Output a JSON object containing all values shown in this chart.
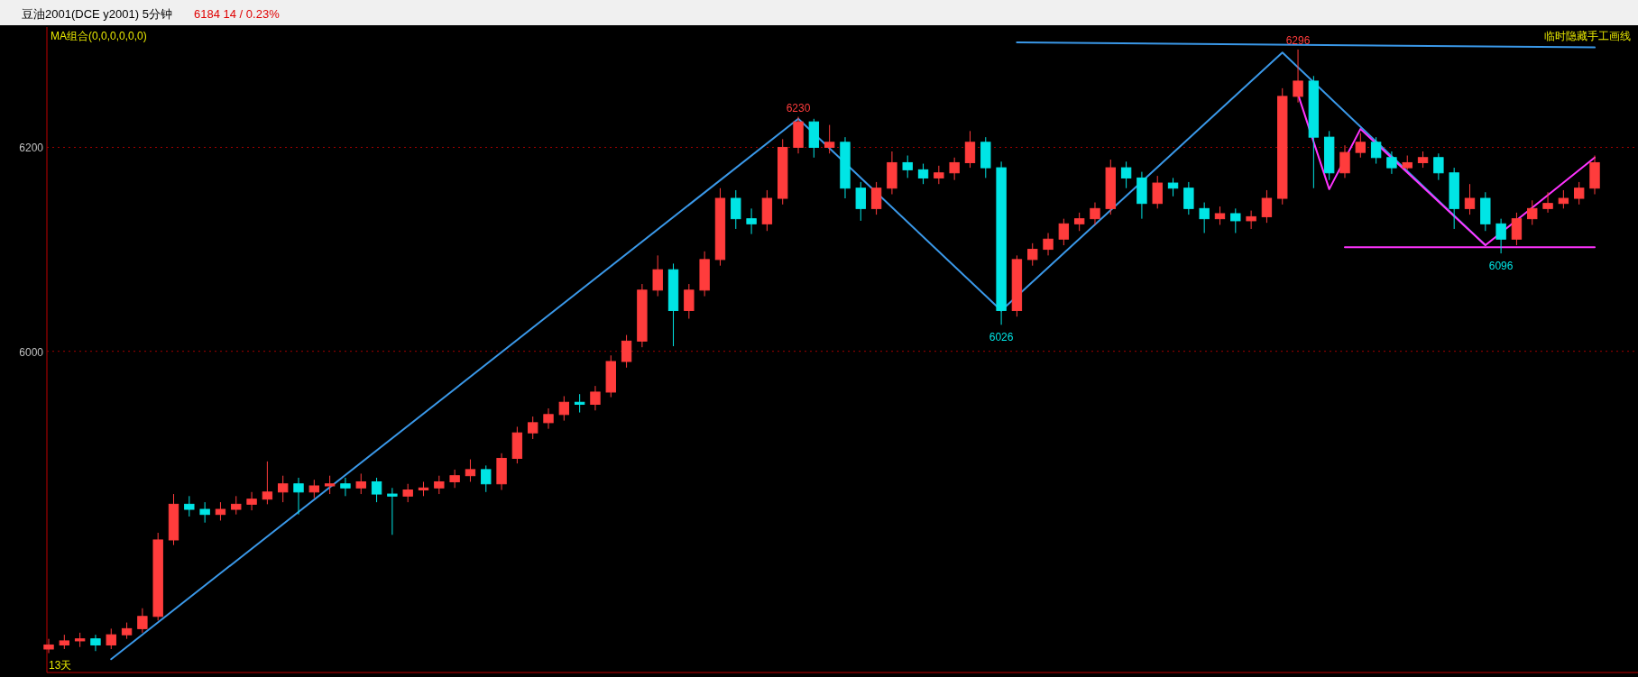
{
  "chart_data": {
    "type": "candlestick",
    "title": "豆油2001(DCE y2001)  5分钟",
    "subtitle": "6184   14 / 0.23%",
    "categories": [
      null,
      null,
      null,
      null,
      null,
      null,
      null,
      null,
      null,
      null,
      null,
      null,
      null,
      null,
      null,
      null,
      null,
      null,
      null,
      null,
      null,
      null,
      null,
      null,
      null,
      null,
      null,
      null,
      null,
      null,
      null,
      null,
      null,
      null,
      null,
      null,
      null,
      null,
      null,
      null,
      null,
      null,
      null,
      null,
      null,
      null,
      null,
      null,
      null,
      null,
      null,
      null,
      null,
      null,
      null,
      null,
      null,
      null,
      null,
      null,
      null,
      null,
      null,
      null,
      null,
      null,
      null,
      null,
      null,
      null,
      null,
      null,
      null,
      null,
      null,
      null,
      null,
      null,
      null,
      null,
      null,
      null,
      null,
      null,
      null,
      null,
      null,
      null,
      null,
      null,
      null,
      null,
      null,
      null,
      null,
      null,
      null,
      null,
      null,
      null
    ],
    "ohlc": [
      [
        5708,
        5718,
        5704,
        5712
      ],
      [
        5712,
        5722,
        5708,
        5716
      ],
      [
        5716,
        5724,
        5710,
        5718
      ],
      [
        5718,
        5722,
        5706,
        5712
      ],
      [
        5712,
        5728,
        5708,
        5722
      ],
      [
        5722,
        5734,
        5718,
        5728
      ],
      [
        5728,
        5748,
        5724,
        5740
      ],
      [
        5740,
        5822,
        5736,
        5815
      ],
      [
        5815,
        5860,
        5810,
        5850
      ],
      [
        5850,
        5858,
        5838,
        5845
      ],
      [
        5845,
        5852,
        5832,
        5840
      ],
      [
        5840,
        5852,
        5834,
        5845
      ],
      [
        5845,
        5858,
        5840,
        5850
      ],
      [
        5850,
        5862,
        5844,
        5855
      ],
      [
        5855,
        5892,
        5850,
        5862
      ],
      [
        5862,
        5878,
        5852,
        5870
      ],
      [
        5870,
        5876,
        5840,
        5862
      ],
      [
        5862,
        5874,
        5856,
        5868
      ],
      [
        5868,
        5878,
        5860,
        5870
      ],
      [
        5870,
        5876,
        5858,
        5866
      ],
      [
        5866,
        5880,
        5860,
        5872
      ],
      [
        5872,
        5876,
        5852,
        5860
      ],
      [
        5860,
        5866,
        5820,
        5858
      ],
      [
        5858,
        5870,
        5852,
        5864
      ],
      [
        5864,
        5872,
        5858,
        5866
      ],
      [
        5866,
        5878,
        5860,
        5872
      ],
      [
        5872,
        5884,
        5866,
        5878
      ],
      [
        5878,
        5894,
        5872,
        5884
      ],
      [
        5884,
        5888,
        5862,
        5870
      ],
      [
        5870,
        5900,
        5864,
        5895
      ],
      [
        5895,
        5926,
        5890,
        5920
      ],
      [
        5920,
        5936,
        5914,
        5930
      ],
      [
        5930,
        5944,
        5924,
        5938
      ],
      [
        5938,
        5956,
        5932,
        5950
      ],
      [
        5950,
        5958,
        5940,
        5948
      ],
      [
        5948,
        5966,
        5942,
        5960
      ],
      [
        5960,
        5996,
        5955,
        5990
      ],
      [
        5990,
        6016,
        5984,
        6010
      ],
      [
        6010,
        6066,
        6004,
        6060
      ],
      [
        6060,
        6094,
        6054,
        6080
      ],
      [
        6080,
        6086,
        6005,
        6040
      ],
      [
        6040,
        6066,
        6032,
        6060
      ],
      [
        6060,
        6098,
        6054,
        6090
      ],
      [
        6090,
        6160,
        6084,
        6150
      ],
      [
        6150,
        6158,
        6120,
        6130
      ],
      [
        6130,
        6140,
        6115,
        6125
      ],
      [
        6125,
        6158,
        6118,
        6150
      ],
      [
        6150,
        6208,
        6144,
        6200
      ],
      [
        6200,
        6230,
        6194,
        6225
      ],
      [
        6225,
        6228,
        6190,
        6200
      ],
      [
        6200,
        6222,
        6194,
        6205
      ],
      [
        6205,
        6210,
        6150,
        6160
      ],
      [
        6160,
        6166,
        6128,
        6140
      ],
      [
        6140,
        6166,
        6134,
        6160
      ],
      [
        6160,
        6196,
        6154,
        6185
      ],
      [
        6185,
        6192,
        6170,
        6178
      ],
      [
        6178,
        6184,
        6164,
        6170
      ],
      [
        6170,
        6182,
        6164,
        6175
      ],
      [
        6175,
        6190,
        6168,
        6185
      ],
      [
        6185,
        6216,
        6180,
        6205
      ],
      [
        6205,
        6210,
        6170,
        6180
      ],
      [
        6180,
        6186,
        6026,
        6040
      ],
      [
        6040,
        6094,
        6034,
        6090
      ],
      [
        6090,
        6106,
        6084,
        6100
      ],
      [
        6100,
        6116,
        6094,
        6110
      ],
      [
        6110,
        6130,
        6104,
        6125
      ],
      [
        6125,
        6136,
        6118,
        6130
      ],
      [
        6130,
        6146,
        6124,
        6140
      ],
      [
        6140,
        6188,
        6134,
        6180
      ],
      [
        6180,
        6186,
        6160,
        6170
      ],
      [
        6170,
        6176,
        6130,
        6145
      ],
      [
        6145,
        6172,
        6140,
        6165
      ],
      [
        6165,
        6170,
        6152,
        6160
      ],
      [
        6160,
        6166,
        6134,
        6140
      ],
      [
        6140,
        6146,
        6116,
        6130
      ],
      [
        6130,
        6142,
        6124,
        6135
      ],
      [
        6135,
        6140,
        6116,
        6128
      ],
      [
        6128,
        6138,
        6120,
        6132
      ],
      [
        6132,
        6158,
        6126,
        6150
      ],
      [
        6150,
        6258,
        6144,
        6250
      ],
      [
        6250,
        6296,
        6244,
        6265
      ],
      [
        6265,
        6270,
        6160,
        6210
      ],
      [
        6210,
        6216,
        6168,
        6175
      ],
      [
        6175,
        6202,
        6170,
        6195
      ],
      [
        6195,
        6214,
        6190,
        6205
      ],
      [
        6205,
        6210,
        6184,
        6190
      ],
      [
        6190,
        6196,
        6174,
        6180
      ],
      [
        6180,
        6192,
        6178,
        6185
      ],
      [
        6185,
        6196,
        6180,
        6190
      ],
      [
        6190,
        6194,
        6168,
        6175
      ],
      [
        6175,
        6180,
        6120,
        6140
      ],
      [
        6140,
        6164,
        6134,
        6150
      ],
      [
        6150,
        6156,
        6118,
        6125
      ],
      [
        6125,
        6130,
        6096,
        6110
      ],
      [
        6110,
        6136,
        6104,
        6130
      ],
      [
        6130,
        6148,
        6124,
        6140
      ],
      [
        6140,
        6156,
        6136,
        6145
      ],
      [
        6145,
        6158,
        6140,
        6150
      ],
      [
        6150,
        6166,
        6144,
        6160
      ],
      [
        6160,
        6192,
        6154,
        6185
      ]
    ],
    "series": [
      {
        "type": "line",
        "color": "#3a98e8",
        "values": [
          null,
          null,
          null,
          null,
          5698,
          null,
          null,
          null,
          null,
          null,
          null,
          null,
          null,
          null,
          null,
          null,
          null,
          null,
          null,
          null,
          null,
          null,
          null,
          null,
          null,
          null,
          null,
          null,
          null,
          null,
          null,
          null,
          null,
          null,
          null,
          null,
          null,
          null,
          null,
          null,
          null,
          null,
          null,
          null,
          null,
          null,
          null,
          null,
          6228,
          null,
          null,
          null,
          null,
          null,
          null,
          null,
          null,
          null,
          null,
          null,
          null,
          6040,
          null,
          null,
          null,
          null,
          null,
          null,
          null,
          null,
          null,
          null,
          null,
          null,
          null,
          null,
          null,
          null,
          null,
          6293,
          null,
          null,
          null,
          null,
          null,
          null,
          null,
          null,
          null,
          null,
          null,
          null,
          6104,
          null,
          null,
          null,
          null,
          null,
          null,
          null
        ]
      },
      {
        "type": "line",
        "color": "#3a98e8",
        "values": [
          null,
          null,
          null,
          null,
          null,
          null,
          null,
          null,
          null,
          null,
          null,
          null,
          null,
          null,
          null,
          null,
          null,
          null,
          null,
          null,
          null,
          null,
          null,
          null,
          null,
          null,
          null,
          null,
          null,
          null,
          null,
          null,
          null,
          null,
          null,
          null,
          null,
          null,
          null,
          null,
          null,
          null,
          null,
          null,
          null,
          null,
          null,
          null,
          null,
          null,
          null,
          null,
          null,
          null,
          null,
          null,
          null,
          null,
          null,
          null,
          null,
          null,
          6303,
          null,
          null,
          null,
          null,
          null,
          null,
          null,
          null,
          null,
          null,
          null,
          null,
          null,
          null,
          null,
          null,
          null,
          null,
          null,
          null,
          null,
          null,
          null,
          null,
          null,
          null,
          null,
          null,
          null,
          null,
          null,
          null,
          null,
          null,
          null,
          null,
          6298
        ]
      },
      {
        "type": "line",
        "color": "#ff33ff",
        "values": [
          null,
          null,
          null,
          null,
          null,
          null,
          null,
          null,
          null,
          null,
          null,
          null,
          null,
          null,
          null,
          null,
          null,
          null,
          null,
          null,
          null,
          null,
          null,
          null,
          null,
          null,
          null,
          null,
          null,
          null,
          null,
          null,
          null,
          null,
          null,
          null,
          null,
          null,
          null,
          null,
          null,
          null,
          null,
          null,
          null,
          null,
          null,
          null,
          null,
          null,
          null,
          null,
          null,
          null,
          null,
          null,
          null,
          null,
          null,
          null,
          null,
          null,
          null,
          null,
          null,
          null,
          null,
          null,
          null,
          null,
          null,
          null,
          null,
          null,
          null,
          null,
          null,
          null,
          null,
          null,
          6252,
          null,
          6159,
          null,
          6218,
          null,
          null,
          null,
          null,
          null,
          null,
          null,
          6104,
          null,
          null,
          null,
          null,
          null,
          null,
          6190
        ]
      },
      {
        "type": "line",
        "color": "#ff33ff",
        "values": [
          null,
          null,
          null,
          null,
          null,
          null,
          null,
          null,
          null,
          null,
          null,
          null,
          null,
          null,
          null,
          null,
          null,
          null,
          null,
          null,
          null,
          null,
          null,
          null,
          null,
          null,
          null,
          null,
          null,
          null,
          null,
          null,
          null,
          null,
          null,
          null,
          null,
          null,
          null,
          null,
          null,
          null,
          null,
          null,
          null,
          null,
          null,
          null,
          null,
          null,
          null,
          null,
          null,
          null,
          null,
          null,
          null,
          null,
          null,
          null,
          null,
          null,
          null,
          null,
          null,
          null,
          null,
          null,
          null,
          null,
          null,
          null,
          null,
          null,
          null,
          null,
          null,
          null,
          null,
          null,
          null,
          null,
          null,
          6102,
          null,
          null,
          null,
          null,
          null,
          null,
          null,
          null,
          null,
          null,
          null,
          null,
          null,
          null,
          null,
          6102
        ]
      }
    ],
    "ylim": [
      5685,
      6318
    ],
    "yticks": [
      6000,
      6200
    ],
    "grid": "y",
    "annotations": [
      {
        "text": "6230",
        "y": 6230
      },
      {
        "text": "6026",
        "y": 6026
      },
      {
        "text": "6296",
        "y": 6296
      },
      {
        "text": "6096",
        "y": 6096
      },
      "MA组合(0,0,0,0,0,0)",
      "临时隐藏手工画线",
      "13天"
    ]
  }
}
